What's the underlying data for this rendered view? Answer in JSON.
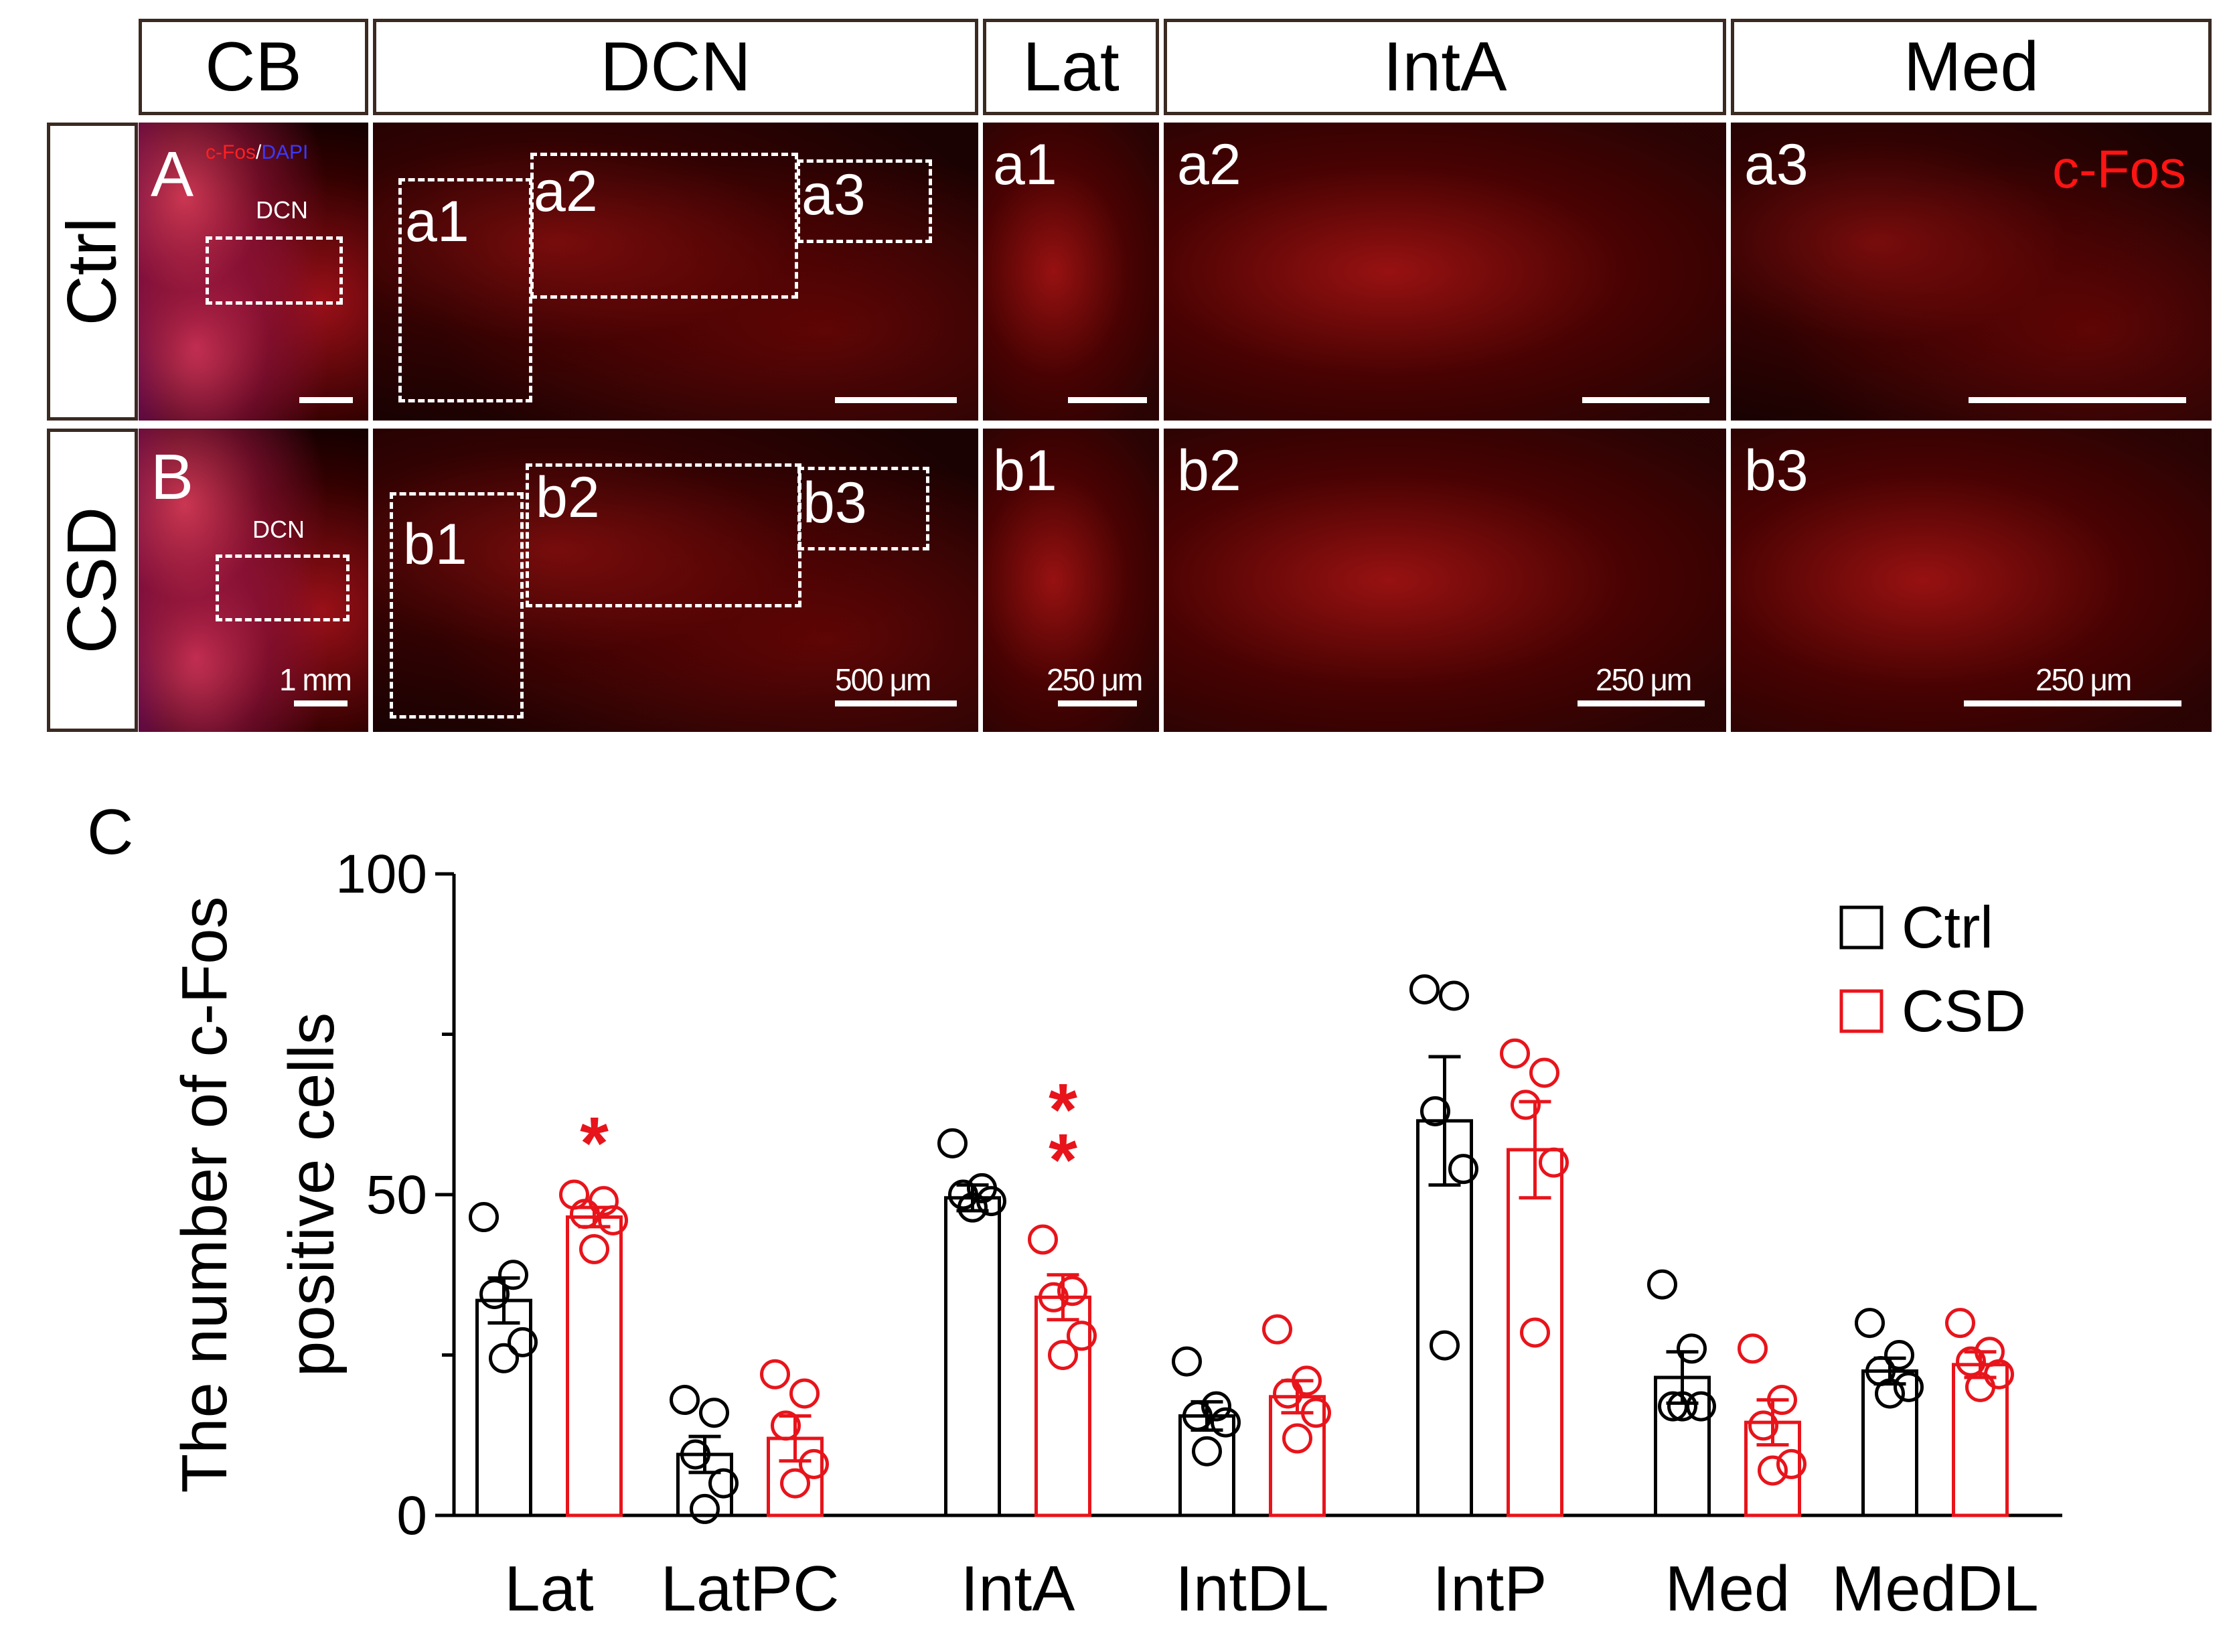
{
  "figure": {
    "columns": {
      "cb": "CB",
      "dcn": "DCN",
      "lat": "Lat",
      "inta": "IntA",
      "med": "Med"
    },
    "rows": {
      "ctrl": "Ctrl",
      "csd": "CSD"
    },
    "panel_letters": {
      "a": "A",
      "b": "B",
      "c": "C"
    },
    "stain_legend": {
      "cfos": "c-Fos",
      "slash": "/",
      "dapi": "DAPI"
    },
    "dcn_small_label": "DCN",
    "subpanel_labels": {
      "a1": "a1",
      "a2": "a2",
      "a3": "a3",
      "b1": "b1",
      "b2": "b2",
      "b3": "b3"
    },
    "cfos_tag": "c-Fos",
    "scale_labels": {
      "cb": "1 mm",
      "dcn": "500 μm",
      "lat": "250 μm",
      "inta": "250 μm",
      "med": "250 μm"
    },
    "colors": {
      "ctrl": "#000000",
      "csd": "#e8141b",
      "border": "#3a2a22"
    }
  },
  "chart_data": {
    "type": "bar",
    "title": "",
    "ylabel_line1": "The number of c-Fos",
    "ylabel_line2": "positive cells",
    "xlabel": "",
    "ylim": [
      0,
      100
    ],
    "yticks": [
      0,
      50,
      100
    ],
    "categories": [
      "Lat",
      "LatPC",
      "IntA",
      "IntDL",
      "IntP",
      "Med",
      "MedDL"
    ],
    "legend_position": "top-right",
    "series": [
      {
        "name": "Ctrl",
        "color": "#000000",
        "means": [
          33.5,
          9.5,
          49.5,
          15.5,
          61.5,
          21.5,
          22.5
        ],
        "sem": [
          3.5,
          2.8,
          2.0,
          2.2,
          10.0,
          4.0,
          2.0
        ],
        "points": [
          [
            46.5,
            37.5,
            34.5,
            27,
            24.5
          ],
          [
            18,
            16,
            9.5,
            5,
            1
          ],
          [
            58,
            51,
            50,
            49,
            48
          ],
          [
            24,
            17,
            15.5,
            14.5,
            10
          ],
          [
            82,
            81,
            63,
            54,
            26.5
          ],
          [
            36,
            26,
            17,
            17,
            17
          ],
          [
            30,
            25,
            22.5,
            20,
            19
          ]
        ]
      },
      {
        "name": "CSD",
        "color": "#e8141b",
        "means": [
          46.5,
          12.0,
          34.0,
          18.5,
          57.0,
          14.5,
          23.5
        ],
        "sem": [
          1.5,
          3.5,
          3.5,
          2.5,
          7.5,
          3.5,
          2.0
        ],
        "points": [
          [
            50,
            49,
            47,
            46,
            41.5
          ],
          [
            22,
            19,
            14,
            8,
            5
          ],
          [
            43,
            35,
            34,
            28,
            25
          ],
          [
            29,
            21,
            19,
            16,
            12
          ],
          [
            72,
            69,
            64,
            55,
            28.5
          ],
          [
            26,
            18,
            14,
            8,
            7
          ],
          [
            30,
            25.5,
            24,
            22,
            20
          ]
        ]
      }
    ],
    "significance": [
      {
        "category": "Lat",
        "series": "CSD",
        "label": "*"
      },
      {
        "category": "IntA",
        "series": "CSD",
        "label": "**"
      }
    ]
  }
}
